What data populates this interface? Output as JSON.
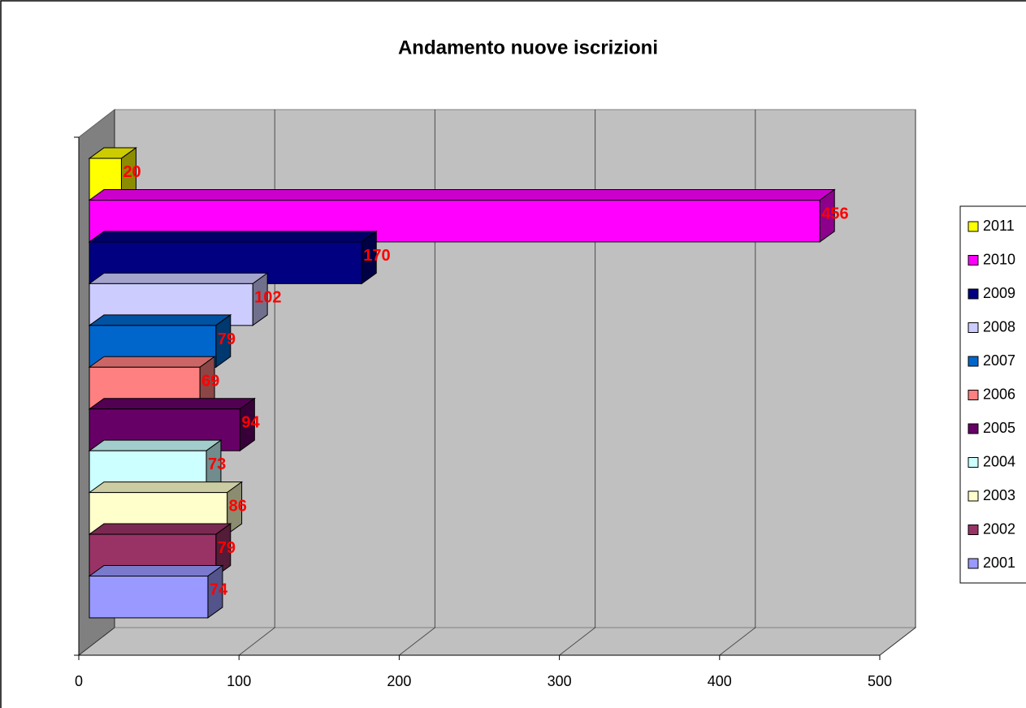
{
  "chart_data": {
    "type": "bar",
    "orientation": "horizontal",
    "title": "Andamento nuove iscrizioni",
    "series": [
      {
        "name": "2011",
        "color": "#ffff00",
        "values": [
          20
        ]
      },
      {
        "name": "2010",
        "color": "#ff00ff",
        "values": [
          456
        ]
      },
      {
        "name": "2009",
        "color": "#000080",
        "values": [
          170
        ]
      },
      {
        "name": "2008",
        "color": "#ccccff",
        "values": [
          102
        ]
      },
      {
        "name": "2007",
        "color": "#0066cc",
        "values": [
          79
        ]
      },
      {
        "name": "2006",
        "color": "#ff8080",
        "values": [
          69
        ]
      },
      {
        "name": "2005",
        "color": "#660066",
        "values": [
          94
        ]
      },
      {
        "name": "2004",
        "color": "#ccffff",
        "values": [
          73
        ]
      },
      {
        "name": "2003",
        "color": "#ffffcc",
        "values": [
          86
        ]
      },
      {
        "name": "2002",
        "color": "#993366",
        "values": [
          79
        ]
      },
      {
        "name": "2001",
        "color": "#9999ff",
        "values": [
          74
        ]
      }
    ],
    "xlim": [
      0,
      500
    ],
    "xticks": [
      0,
      100,
      200,
      300,
      400,
      500
    ],
    "grid": true,
    "legend": "right"
  }
}
